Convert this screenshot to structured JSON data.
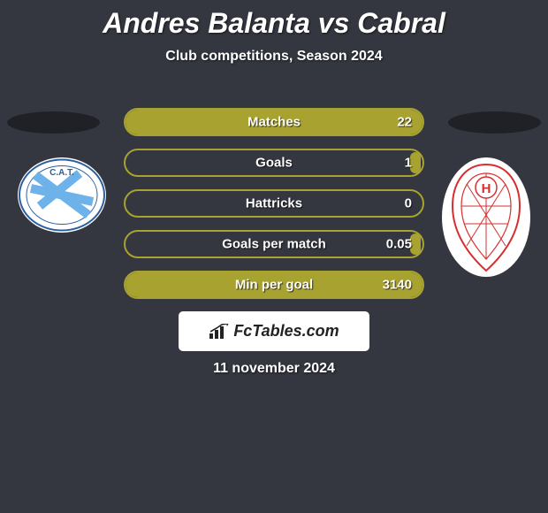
{
  "title": "Andres Balanta vs Cabral",
  "subtitle": "Club competitions, Season 2024",
  "date": "11 november 2024",
  "pill_border_color": "#a8a230",
  "pill_fill_color": "#a8a230",
  "stats": [
    {
      "label": "Matches",
      "value": "22",
      "fill_pct": 100
    },
    {
      "label": "Goals",
      "value": "1",
      "fill_pct": 5
    },
    {
      "label": "Hattricks",
      "value": "0",
      "fill_pct": 0
    },
    {
      "label": "Goals per match",
      "value": "0.05",
      "fill_pct": 3
    },
    {
      "label": "Min per goal",
      "value": "3140",
      "fill_pct": 100
    }
  ],
  "fctables": "FcTables.com",
  "badge_left": {
    "bg": "#ffffff",
    "stripe": "#6db2e8",
    "text": "C.A.T."
  },
  "badge_right": {
    "bg": "#ffffff",
    "outline": "#d62f2f",
    "letter": "H"
  }
}
